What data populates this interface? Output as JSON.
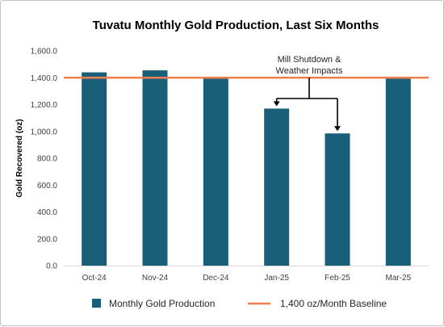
{
  "chart_data": {
    "type": "bar",
    "title": "Tuvatu Monthly Gold Production, Last Six Months",
    "xlabel": "",
    "ylabel": "Gold Recovered (oz)",
    "ylim": [
      0,
      1600
    ],
    "yticks": [
      0,
      200,
      400,
      600,
      800,
      1000,
      1200,
      1400,
      1600
    ],
    "ytick_labels": [
      "0.0",
      "200.0",
      "400.0",
      "600.0",
      "800.0",
      "1,000.0",
      "1,200.0",
      "1,400.0",
      "1,600.0"
    ],
    "categories": [
      "Oct-24",
      "Nov-24",
      "Dec-24",
      "Jan-25",
      "Feb-25",
      "Mar-25"
    ],
    "series": [
      {
        "name": "Monthly Gold Production",
        "values": [
          1440,
          1455,
          1400,
          1170,
          985,
          1395
        ],
        "color": "#1a5f7a"
      }
    ],
    "baseline": {
      "name": "1,400 oz/Month Baseline",
      "value": 1400,
      "color": "#f07f4f"
    },
    "annotation": {
      "lines": [
        "Mill Shutdown &",
        "Weather Impacts"
      ],
      "targets": [
        "Jan-25",
        "Feb-25"
      ]
    },
    "grid": false,
    "legend_position": "bottom"
  }
}
